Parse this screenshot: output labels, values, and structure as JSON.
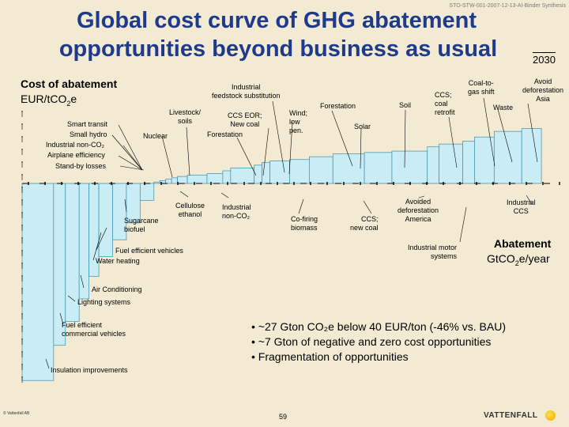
{
  "header": {
    "title_line1": "Global cost curve of GHG abatement",
    "title_line2": "opportunities beyond business as usual",
    "doc_id": "STO-STW-001-2007-12-13-Al-Binder Synthesis",
    "year": "2030"
  },
  "chart_data": {
    "type": "bar",
    "ylabel_line1": "Cost of abatement",
    "ylabel_line2": "EUR/tCO2e",
    "xlabel_line1": "Abatement",
    "xlabel_line2": "GtCO2e/year",
    "zero_level": 0,
    "ylim": [
      -150,
      60
    ],
    "xlim": [
      0,
      27
    ],
    "grid": false,
    "bars": [
      {
        "label": "Insulation improvements",
        "x0": 0.0,
        "x1": 1.6,
        "value": -140
      },
      {
        "label": "Fuel efficient commercial vehicles",
        "x0": 1.6,
        "x1": 2.2,
        "value": -115
      },
      {
        "label": "Lighting systems",
        "x0": 2.2,
        "x1": 2.9,
        "value": -98
      },
      {
        "label": "Air Conditioning",
        "x0": 2.9,
        "x1": 3.4,
        "value": -82
      },
      {
        "label": "Water heating",
        "x0": 3.4,
        "x1": 3.9,
        "value": -66
      },
      {
        "label": "Fuel efficient vehicles",
        "x0": 3.9,
        "x1": 4.6,
        "value": -52
      },
      {
        "label": "Sugarcane biofuel",
        "x0": 4.6,
        "x1": 5.3,
        "value": -40
      },
      {
        "label": "Cellulose ethanol",
        "x0": 5.3,
        "x1": 6.0,
        "value": -28
      },
      {
        "label": "Industrial non-CO2",
        "x0": 6.0,
        "x1": 6.7,
        "value": -12
      },
      {
        "label": "Standby losses",
        "x0": 6.7,
        "x1": 7.0,
        "value": 1
      },
      {
        "label": "Airplane efficiency",
        "x0": 7.0,
        "x1": 7.3,
        "value": 2
      },
      {
        "label": "Industrial non-CO2 (positive)",
        "x0": 7.3,
        "x1": 7.6,
        "value": 3
      },
      {
        "label": "Small hydro",
        "x0": 7.6,
        "x1": 7.9,
        "value": 4
      },
      {
        "label": "Smart transit",
        "x0": 7.9,
        "x1": 8.4,
        "value": 5
      },
      {
        "label": "Nuclear",
        "x0": 8.4,
        "x1": 9.4,
        "value": 6
      },
      {
        "label": "Livestock/soils",
        "x0": 9.4,
        "x1": 10.2,
        "value": 7
      },
      {
        "label": "CCS EOR; New coal",
        "x0": 10.2,
        "x1": 10.6,
        "value": 9
      },
      {
        "label": "Forestation",
        "x0": 10.6,
        "x1": 11.8,
        "value": 11
      },
      {
        "label": "Industrial feedstock substitution",
        "x0": 11.8,
        "x1": 12.2,
        "value": 13
      },
      {
        "label": "Co-firing biomass",
        "x0": 12.2,
        "x1": 12.6,
        "value": 15
      },
      {
        "label": "Wind; low pen.",
        "x0": 12.6,
        "x1": 13.6,
        "value": 16
      },
      {
        "label": "Forestation (2)",
        "x0": 13.6,
        "x1": 14.6,
        "value": 17
      },
      {
        "label": "Solar",
        "x0": 14.6,
        "x1": 15.8,
        "value": 19
      },
      {
        "label": "CCS; new coal",
        "x0": 15.8,
        "x1": 17.4,
        "value": 21
      },
      {
        "label": "Soil",
        "x0": 17.4,
        "x1": 18.8,
        "value": 22
      },
      {
        "label": "Avoided deforestation America",
        "x0": 18.8,
        "x1": 20.6,
        "value": 23
      },
      {
        "label": "CCS; coal retrofit",
        "x0": 20.6,
        "x1": 21.2,
        "value": 26
      },
      {
        "label": "Industrial motor systems",
        "x0": 21.2,
        "x1": 22.4,
        "value": 28
      },
      {
        "label": "Coal-to-gas shift",
        "x0": 22.4,
        "x1": 23.0,
        "value": 30
      },
      {
        "label": "Waste",
        "x0": 23.0,
        "x1": 24.0,
        "value": 33
      },
      {
        "label": "Avoided deforestation Asia",
        "x0": 24.0,
        "x1": 25.4,
        "value": 37
      },
      {
        "label": "Industrial CCS",
        "x0": 25.4,
        "x1": 26.4,
        "value": 39
      }
    ]
  },
  "labels": {
    "smart_transit": "Smart transit",
    "small_hydro": "Small hydro",
    "industrial_non_co2_top": "Industrial non-CO₂",
    "airplane": "Airplane efficiency",
    "standby": "Stand-by losses",
    "nuclear": "Nuclear",
    "livestock": "Livestock/\nsoils",
    "ccs_eor": "CCS EOR;\nNew coal",
    "forestation_1": "Forestation",
    "feedstock": "Industrial\nfeedstock substitution",
    "wind": "Wind;\nlow\npen.",
    "forestation_2": "Forestation",
    "solar": "Solar",
    "soil": "Soil",
    "ccs_retrofit": "CCS;\ncoal\nretrofit",
    "coal_to_gas": "Coal-to-\ngas shift",
    "waste": "Waste",
    "avoid_asia": "Avoid\ndeforestation\nAsia",
    "cellulose": "Cellulose\nethanol",
    "industrial_non_co2_bottom": "Industrial\nnon-CO₂",
    "sugarcane": "Sugarcane\nbiofuel",
    "cofiring": "Co-firing\nbiomass",
    "ccs_new_coal": "CCS;\nnew coal",
    "avoided_america": "Avoided\ndeforestation\nAmerica",
    "industrial_ccs": "Industrial\nCCS",
    "fuel_vehicles": "Fuel efficient vehicles",
    "water_heating": "Water heating",
    "motor_systems": "Industrial motor\nsystems",
    "air_conditioning": "Air Conditioning",
    "lighting": "Lighting systems",
    "commercial_vehicles": "Fuel efficient\ncommercial vehicles",
    "insulation": "Insulation improvements"
  },
  "bullets": [
    "~27 Gton CO₂e below 40 EUR/ton (-46% vs. BAU)",
    "~7 Gton of negative and zero cost opportunities",
    "Fragmentation of opportunities"
  ],
  "footer": {
    "copyright": "© Vattenfall AB",
    "page": "59",
    "logo": "VATTENFALL"
  },
  "colors": {
    "background": "#f2ead3",
    "title": "#1f3a8a",
    "bar_fill": "#c9ecf5",
    "bar_stroke": "#3a8fb0",
    "logo_mark": "#f0b400"
  }
}
